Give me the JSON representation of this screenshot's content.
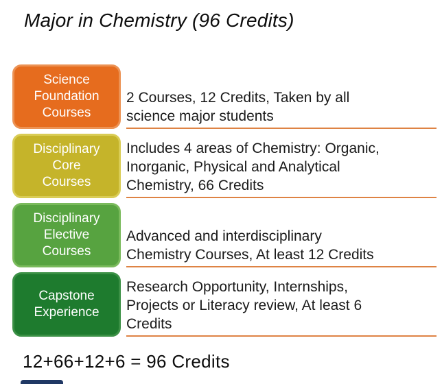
{
  "title": "Major in Chemistry (96 Credits)",
  "rows": [
    {
      "label": "Science\nFoundation\nCourses",
      "description": "2 Courses, 12 Credits, Taken by all\nscience major students",
      "fill": "#e66c1e",
      "border": "#ec9254"
    },
    {
      "label": "Disciplinary\nCore\nCourses",
      "description": "Includes 4 areas of Chemistry: Organic,\nInorganic, Physical and Analytical\nChemistry, 66 Credits",
      "fill": "#c5b42a",
      "border": "#d9cc55"
    },
    {
      "label": "Disciplinary\nElective\nCourses",
      "description": "Advanced and interdisciplinary\nChemistry Courses, At least 12 Credits",
      "fill": "#57a340",
      "border": "#7aba5c"
    },
    {
      "label": "Capstone\nExperience",
      "description": "Research Opportunity, Internships,\nProjects or Literacy review, At least 6\nCredits",
      "fill": "#1e7b2e",
      "border": "#3b9045"
    }
  ],
  "summary": {
    "text": "12+66+12+6 = 96 Credits"
  },
  "divider_color": "#de8344",
  "footer_bar_color": "#203864"
}
